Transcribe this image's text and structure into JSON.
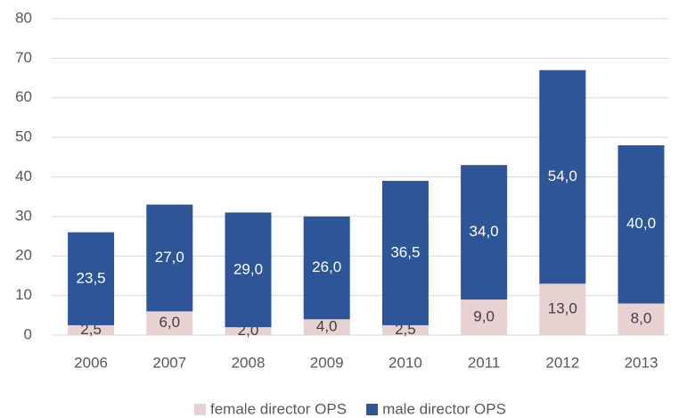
{
  "chart_data": {
    "type": "stacked_bar",
    "categories": [
      "2006",
      "2007",
      "2008",
      "2009",
      "2010",
      "2011",
      "2012",
      "2013"
    ],
    "series": [
      {
        "name": "female director OPS",
        "color": "#e8d1d1",
        "label_color": "#404040",
        "values": [
          2.5,
          6,
          2,
          4,
          2.5,
          9,
          13,
          8
        ],
        "value_labels": [
          "2,5",
          "6,0",
          "2,0",
          "4,0",
          "2,5",
          "9,0",
          "13,0",
          "8,0"
        ]
      },
      {
        "name": "male director OPS",
        "color": "#2e5597",
        "label_color": "#ffffff",
        "values": [
          23.5,
          27,
          29,
          26,
          36.5,
          34,
          54,
          40
        ],
        "value_labels": [
          "23,5",
          "27,0",
          "29,0",
          "26,0",
          "36,5",
          "34,0",
          "54,0",
          "40,0"
        ]
      }
    ],
    "ylim": [
      0,
      80
    ],
    "yticks": [
      0,
      10,
      20,
      30,
      40,
      50,
      60,
      70,
      80
    ],
    "grid": true,
    "legend": "bottom"
  }
}
